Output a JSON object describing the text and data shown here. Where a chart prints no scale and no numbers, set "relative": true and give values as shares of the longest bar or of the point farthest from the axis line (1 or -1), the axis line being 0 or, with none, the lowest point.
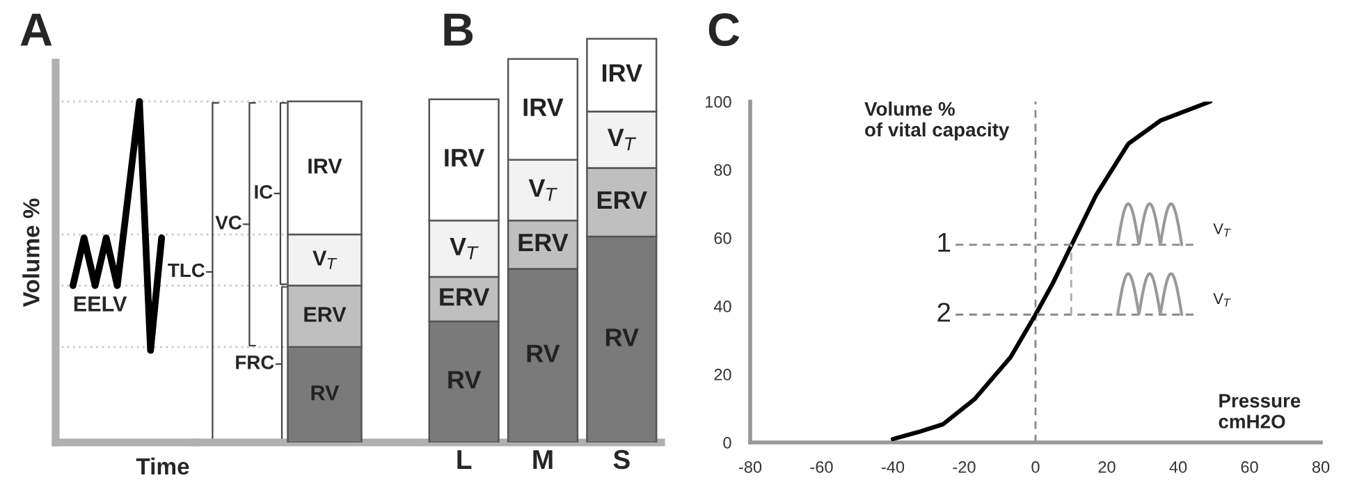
{
  "chart_data": [
    {
      "type": "line",
      "title": "A",
      "xlabel": "Time",
      "ylabel": "Volume %",
      "relative": true,
      "tick_labels": false,
      "categories": [
        null,
        null,
        null,
        null,
        null,
        null,
        null,
        null,
        null
      ],
      "series": [
        {
          "color": "#000000",
          "values": [
            0.46,
            0.6,
            0.46,
            0.6,
            0.46,
            0.73,
            1.0,
            0.27,
            0.6
          ]
        }
      ],
      "annotations": [
        "EELV"
      ],
      "ref_lines": [
        {
          "axis": "y",
          "value": 0.28,
          "color": "#c8c8c8",
          "line_style": "dotted"
        },
        {
          "axis": "y",
          "value": 0.46,
          "color": "#c8c8c8",
          "line_style": "dotted"
        },
        {
          "axis": "y",
          "value": 0.61,
          "color": "#c8c8c8",
          "line_style": "dotted"
        },
        {
          "axis": "y",
          "value": 1.0,
          "color": "#c8c8c8",
          "line_style": "dotted"
        }
      ]
    },
    {
      "type": "bar",
      "relative": true,
      "stacked": true,
      "tick_labels": false,
      "categories": [
        null
      ],
      "series": [
        {
          "name": "RV",
          "color": "#7a7a7a",
          "values": [
            0.28
          ]
        },
        {
          "name": "ERV",
          "color": "#bfbfbf",
          "values": [
            0.18
          ]
        },
        {
          "name": "V$_{T}$",
          "color": "#f2f2f2",
          "values": [
            0.15
          ]
        },
        {
          "name": "IRV",
          "color": "#ffffff",
          "values": [
            0.39
          ]
        }
      ],
      "annotations": [
        "TLC",
        "VC",
        "IC",
        "FRC"
      ]
    },
    {
      "type": "bar",
      "title": "B",
      "relative": true,
      "stacked": true,
      "tick_labels": "x",
      "categories": [
        "L",
        "M",
        "S"
      ],
      "series": [
        {
          "name": "RV",
          "color": "#7a7a7a",
          "values": [
            0.3,
            0.43,
            0.51
          ]
        },
        {
          "name": "ERV",
          "color": "#bfbfbf",
          "values": [
            0.11,
            0.12,
            0.17
          ]
        },
        {
          "name": "V$_{T}$",
          "color": "#f2f2f2",
          "values": [
            0.14,
            0.15,
            0.14
          ]
        },
        {
          "name": "IRV",
          "color": "#ffffff",
          "values": [
            0.3,
            0.25,
            0.18
          ]
        }
      ]
    },
    {
      "type": "line",
      "title": "C",
      "xlabel": "Pressure\ncmH2O",
      "ylabel": "Volume %\nof vital capacity",
      "xlim": [
        -80,
        80
      ],
      "xticks": [
        -80,
        -60,
        -40,
        -20,
        0,
        20,
        40,
        60,
        80
      ],
      "ylim": [
        0,
        100
      ],
      "yticks": [
        0,
        20,
        40,
        60,
        80,
        100
      ],
      "series": [
        {
          "color": "#000000",
          "line_style": "solid",
          "x": [
            -40,
            -33,
            -26,
            -17,
            -7,
            0,
            5,
            10,
            17,
            26,
            35,
            49
          ],
          "values": [
            1,
            3,
            5.3,
            12.8,
            25,
            37.5,
            47,
            57.7,
            72.6,
            87.6,
            94.4,
            100
          ]
        },
        {
          "color": "#888888",
          "line_style": "dashed",
          "x": [
            -22.4,
            44.5
          ],
          "values": [
            58,
            58
          ]
        },
        {
          "color": "#888888",
          "line_style": "dashed",
          "x": [
            -22.4,
            44.5
          ],
          "values": [
            37.5,
            37.5
          ]
        },
        {
          "color": "#aaaaaa",
          "line_style": "dashed",
          "x": [
            10,
            10
          ],
          "values": [
            37.5,
            58
          ]
        }
      ],
      "annotations": [
        {
          "text": "1",
          "x": -22.4,
          "y": 58
        },
        {
          "text": "2",
          "x": -22.4,
          "y": 37.5
        },
        "V$_{T}$",
        "V$_{T}$"
      ],
      "ref_lines": [
        {
          "axis": "x",
          "value": 0,
          "color": "#888888",
          "line_style": "dashed"
        }
      ]
    }
  ]
}
